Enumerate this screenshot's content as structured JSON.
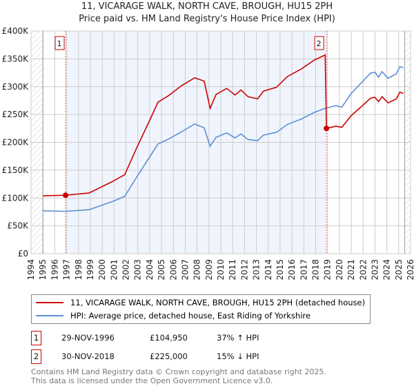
{
  "chart_data": {
    "type": "line",
    "title": "11, VICARAGE WALK, NORTH CAVE, BROUGH, HU15 2PH",
    "subtitle": "Price paid vs. HM Land Registry's House Price Index (HPI)",
    "xlim": [
      1994,
      2026
    ],
    "ylim": [
      0,
      400000
    ],
    "yticks": [
      {
        "v": 0,
        "label": "£0"
      },
      {
        "v": 50000,
        "label": "£50K"
      },
      {
        "v": 100000,
        "label": "£100K"
      },
      {
        "v": 150000,
        "label": "£150K"
      },
      {
        "v": 200000,
        "label": "£200K"
      },
      {
        "v": 250000,
        "label": "£250K"
      },
      {
        "v": 300000,
        "label": "£300K"
      },
      {
        "v": 350000,
        "label": "£350K"
      },
      {
        "v": 400000,
        "label": "£400K"
      }
    ],
    "xticks": [
      "1994",
      "1995",
      "1996",
      "1997",
      "1998",
      "1999",
      "2000",
      "2001",
      "2002",
      "2003",
      "2004",
      "2005",
      "2006",
      "2007",
      "2008",
      "2009",
      "2010",
      "2011",
      "2012",
      "2013",
      "2014",
      "2015",
      "2016",
      "2017",
      "2018",
      "2019",
      "2020",
      "2021",
      "2022",
      "2023",
      "2024",
      "2025",
      "2026"
    ],
    "grid": true,
    "series": [
      {
        "name": "11, VICARAGE WALK, NORTH CAVE, BROUGH, HU15 2PH (detached house)",
        "color": "#cc0000",
        "x": [
          1995.0,
          1996.9,
          1998.9,
          2000.9,
          2001.9,
          2002.95,
          2003.95,
          2004.7,
          2005.6,
          2006.7,
          2007.8,
          2008.6,
          2009.1,
          2009.6,
          2010.5,
          2011.2,
          2011.7,
          2012.3,
          2013.1,
          2013.6,
          2014.7,
          2015.6,
          2016.8,
          2017.9,
          2018.8,
          2018.91,
          2019.7,
          2020.2,
          2021.0,
          2021.9,
          2022.6,
          2023.0,
          2023.3,
          2023.6,
          2024.1,
          2024.8,
          2025.1,
          2025.4
        ],
        "y": [
          104000,
          104950,
          109000,
          130000,
          142000,
          192000,
          237000,
          272000,
          284000,
          302000,
          316000,
          310000,
          261000,
          286000,
          297000,
          285000,
          294000,
          282000,
          278000,
          292000,
          299000,
          318000,
          332000,
          348000,
          357000,
          225000,
          229000,
          227000,
          248000,
          265000,
          279000,
          281000,
          273000,
          282000,
          271000,
          278000,
          290000,
          288000
        ]
      },
      {
        "name": "HPI: Average price, detached house, East Riding of Yorkshire",
        "color": "#5b8fd4",
        "x": [
          1995.0,
          1996.9,
          1998.9,
          2000.9,
          2001.9,
          2002.95,
          2003.95,
          2004.7,
          2005.6,
          2006.7,
          2007.8,
          2008.6,
          2009.1,
          2009.6,
          2010.5,
          2011.2,
          2011.7,
          2012.3,
          2013.1,
          2013.6,
          2014.7,
          2015.6,
          2016.8,
          2017.9,
          2018.8,
          2019.7,
          2020.2,
          2021.0,
          2021.9,
          2022.6,
          2023.0,
          2023.3,
          2023.6,
          2024.1,
          2024.8,
          2025.1,
          2025.4
        ],
        "y": [
          77000,
          76000,
          79000,
          94000,
          103000,
          139000,
          172000,
          197000,
          206000,
          219000,
          233000,
          226000,
          193000,
          209000,
          217000,
          208000,
          215000,
          205000,
          203000,
          213000,
          218000,
          232000,
          242000,
          254000,
          261000,
          266000,
          263000,
          288000,
          308000,
          324000,
          326000,
          317000,
          327000,
          315000,
          323000,
          336000,
          334000
        ]
      }
    ],
    "sales": [
      {
        "id": "1",
        "x": 1996.91,
        "y": 104950,
        "date": "29-NOV-1996",
        "price": "£104,950",
        "hpi": "37% ↑ HPI"
      },
      {
        "id": "2",
        "x": 2018.91,
        "y": 225000,
        "date": "30-NOV-2018",
        "price": "£225,000",
        "hpi": "15% ↓ HPI"
      }
    ]
  },
  "footer": {
    "line1": "Contains HM Land Registry data © Crown copyright and database right 2025.",
    "line2": "This data is licensed under the Open Government Licence v3.0."
  }
}
